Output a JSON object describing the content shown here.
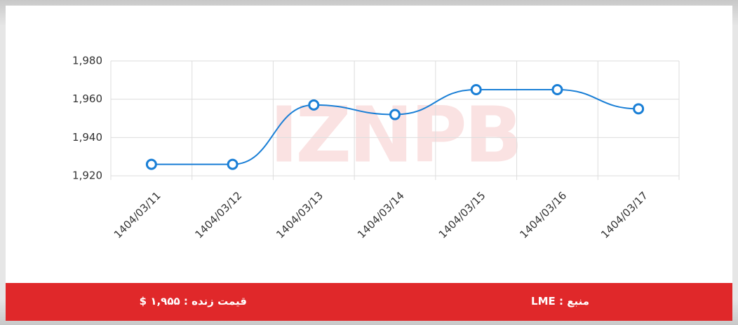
{
  "chart_data": {
    "type": "line",
    "watermark": "IZNPB",
    "categories": [
      "1404/03/11",
      "1404/03/12",
      "1404/03/13",
      "1404/03/14",
      "1404/03/15",
      "1404/03/16",
      "1404/03/17"
    ],
    "series": [
      {
        "color": "#1a7fd6",
        "values": [
          1926,
          1926,
          1957,
          1952,
          1965,
          1965,
          1955
        ]
      }
    ],
    "ylim": [
      1920,
      1980
    ],
    "yticks": [
      {
        "value": 1920,
        "label": "1,920"
      },
      {
        "value": 1940,
        "label": "1,940"
      },
      {
        "value": 1960,
        "label": "1,960"
      },
      {
        "value": 1980,
        "label": "1,980"
      }
    ],
    "grid": true
  },
  "footer": {
    "price": "قیمت زنده : ۱,۹۵۵ $",
    "source": "منبع : LME"
  }
}
